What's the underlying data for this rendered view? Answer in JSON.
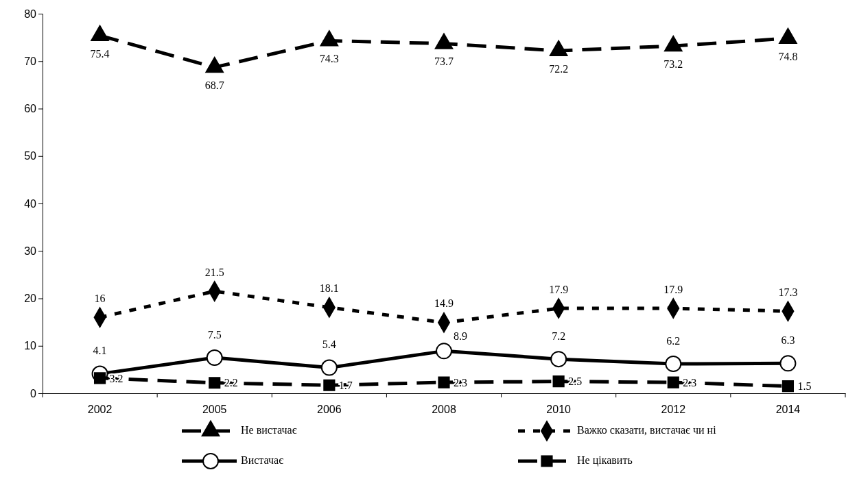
{
  "chart_data": {
    "type": "line",
    "categories": [
      "2002",
      "2005",
      "2006",
      "2008",
      "2010",
      "2012",
      "2014"
    ],
    "ylim": [
      0,
      80
    ],
    "yticks": [
      0,
      10,
      20,
      30,
      40,
      50,
      60,
      70,
      80
    ],
    "grid": false,
    "legend": "bottom",
    "data_labels": true,
    "series": [
      {
        "name": "Не вистачає",
        "color": "#000000",
        "marker": "triangle",
        "line_style": "dashed",
        "values": [
          75.4,
          68.7,
          74.3,
          73.7,
          72.2,
          73.2,
          74.8
        ]
      },
      {
        "name": "Важко сказати, вистачає чи ні",
        "color": "#000000",
        "marker": "diamond",
        "line_style": "dotted",
        "values": [
          16,
          21.5,
          18.1,
          14.9,
          17.9,
          17.9,
          17.3
        ]
      },
      {
        "name": "Вистачає",
        "color": "#000000",
        "marker": "circle",
        "line_style": "solid",
        "values": [
          4.1,
          7.5,
          5.4,
          8.9,
          7.2,
          6.2,
          6.3
        ]
      },
      {
        "name": "Не цікавить",
        "color": "#000000",
        "marker": "square",
        "line_style": "dashed",
        "values": [
          3.2,
          2.2,
          1.7,
          2.3,
          2.5,
          2.3,
          1.5
        ]
      }
    ]
  }
}
